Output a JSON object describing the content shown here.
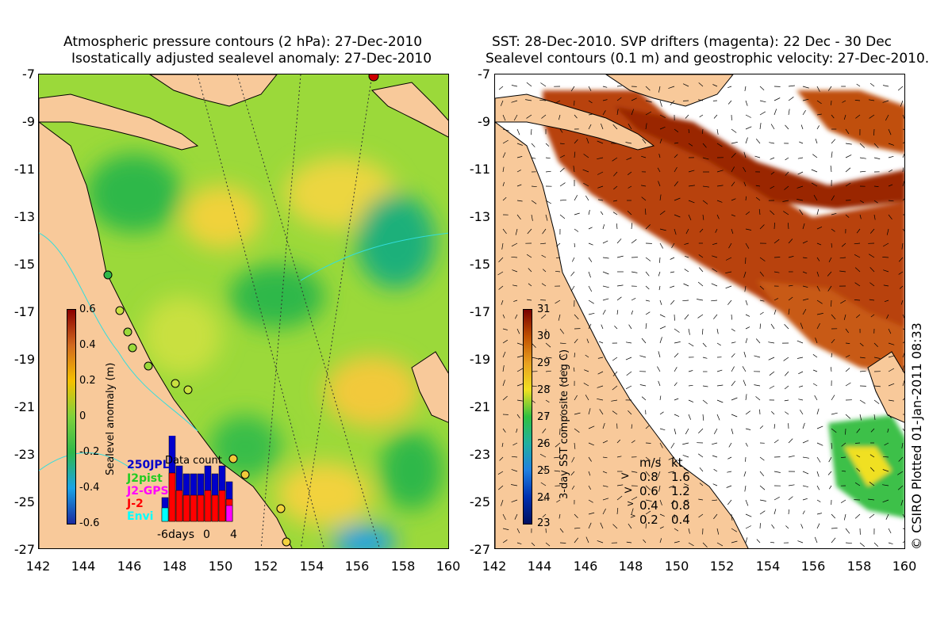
{
  "left_panel": {
    "title_line1": "Atmospheric pressure contours (2 hPa): 27-Dec-2010",
    "title_line2": "Isostatically adjusted sealevel anomaly: 27-Dec-2010",
    "colorbar_label": "Sealevel anomaly (m)",
    "colorbar_ticks": [
      "0.6",
      "0.4",
      "0.2",
      "0",
      "-0.2",
      "-0.4",
      "-0.6"
    ],
    "colorbar_colors": [
      "#8b0000",
      "#d2691e",
      "#f5c000",
      "#7fd13b",
      "#2fb84a",
      "#1aa3e6",
      "#1a2aa0"
    ],
    "inset": {
      "title": "Data count",
      "legend": [
        "250JPL",
        "J2pist",
        "J2-GPS",
        "J-2",
        "Envi"
      ],
      "legend_colors": [
        "#0000cc",
        "#22cc22",
        "#ff00ff",
        "#ff0000",
        "#00ffff"
      ],
      "x_ticks": [
        "-6days",
        "0",
        "4"
      ]
    }
  },
  "right_panel": {
    "title_line1": "SST: 28-Dec-2010. SVP drifters (magenta): 22 Dec - 30 Dec",
    "title_line2": "Sealevel contours (0.1 m) and geostrophic velocity: 27-Dec-2010.",
    "colorbar_label": "3-day SST composite (deg C)",
    "colorbar_ticks": [
      "31",
      "30",
      "29",
      "28",
      "27",
      "26",
      "25",
      "24",
      "23"
    ],
    "colorbar_colors": [
      "#7a0000",
      "#c05000",
      "#e8a020",
      "#f0e020",
      "#30c040",
      "#20b0a0",
      "#2080e0",
      "#0030b0",
      "#001060"
    ],
    "velocity_legend": {
      "header_ms": "m/s",
      "header_kt": "kt",
      "rows": [
        {
          "ms": "0.8",
          "kt": "1.6"
        },
        {
          "ms": "0.6",
          "kt": "1.2"
        },
        {
          "ms": "0.4",
          "kt": "0.8"
        },
        {
          "ms": "0.2",
          "kt": "0.4"
        }
      ]
    },
    "credit": "© CSIRO Plotted 01-Jan-2011 08:33"
  },
  "axes": {
    "x_ticks": [
      "142",
      "144",
      "146",
      "148",
      "150",
      "152",
      "154",
      "156",
      "158",
      "160"
    ],
    "y_ticks": [
      "-7",
      "-9",
      "-11",
      "-13",
      "-15",
      "-17",
      "-19",
      "-21",
      "-23",
      "-25",
      "-27"
    ]
  }
}
